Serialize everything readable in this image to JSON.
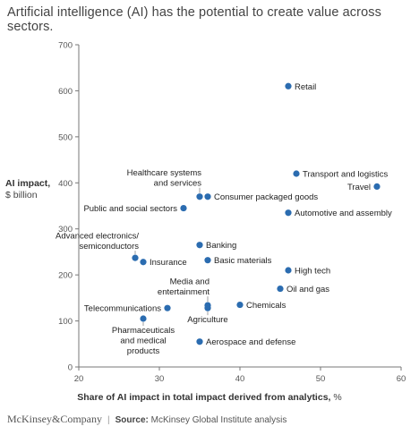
{
  "title": "Artificial intelligence (AI) has the potential to create value across sectors.",
  "ylabel_main": "AI impact,",
  "ylabel_unit": "$ billion",
  "xlabel_main": "Share of AI impact in total impact derived from analytics,",
  "xlabel_unit": "%",
  "footer": {
    "brand": "McKinsey&Company",
    "separator": "|",
    "source_label": "Source:",
    "source_text": "McKinsey Global Institute analysis"
  },
  "colors": {
    "point": "#2b6cb0",
    "axis": "#777777",
    "grid": "#e6e6e6",
    "label": "#222222"
  },
  "chart_data": {
    "type": "scatter",
    "xlim": [
      20,
      60
    ],
    "ylim": [
      0,
      700
    ],
    "xticks": [
      20,
      30,
      40,
      50,
      60
    ],
    "yticks": [
      0,
      100,
      200,
      300,
      400,
      500,
      600,
      700
    ],
    "grid": false,
    "points": [
      {
        "label": [
          "Retail"
        ],
        "x": 46,
        "y": 610,
        "pos": "right"
      },
      {
        "label": [
          "Transport and logistics"
        ],
        "x": 47,
        "y": 420,
        "pos": "right"
      },
      {
        "label": [
          "Travel"
        ],
        "x": 57,
        "y": 392,
        "pos": "left"
      },
      {
        "label": [
          "Healthcare systems",
          "and services"
        ],
        "x": 35,
        "y": 370,
        "pos": "above"
      },
      {
        "label": [
          "Consumer packaged goods"
        ],
        "x": 36,
        "y": 370,
        "pos": "right"
      },
      {
        "label": [
          "Public and social sectors"
        ],
        "x": 33,
        "y": 345,
        "pos": "left"
      },
      {
        "label": [
          "Automotive and assembly"
        ],
        "x": 46,
        "y": 335,
        "pos": "right"
      },
      {
        "label": [
          "Banking"
        ],
        "x": 35,
        "y": 265,
        "pos": "right"
      },
      {
        "label": [
          "Advanced electronics/",
          "semiconductors"
        ],
        "x": 27,
        "y": 237,
        "pos": "above-left"
      },
      {
        "label": [
          "Insurance"
        ],
        "x": 28,
        "y": 228,
        "pos": "right"
      },
      {
        "label": [
          "Basic materials"
        ],
        "x": 36,
        "y": 232,
        "pos": "right"
      },
      {
        "label": [
          "High tech"
        ],
        "x": 46,
        "y": 210,
        "pos": "right"
      },
      {
        "label": [
          "Oil and gas"
        ],
        "x": 45,
        "y": 170,
        "pos": "right"
      },
      {
        "label": [
          "Media and",
          "entertainment"
        ],
        "x": 36,
        "y": 134,
        "pos": "above"
      },
      {
        "label": [
          "Agriculture"
        ],
        "x": 36,
        "y": 128,
        "pos": "below"
      },
      {
        "label": [
          "Chemicals"
        ],
        "x": 40,
        "y": 135,
        "pos": "right"
      },
      {
        "label": [
          "Telecommunications"
        ],
        "x": 31,
        "y": 128,
        "pos": "left"
      },
      {
        "label": [
          "Pharmaceuticals",
          "and medical",
          "products"
        ],
        "x": 28,
        "y": 105,
        "pos": "below"
      },
      {
        "label": [
          "Aerospace and defense"
        ],
        "x": 35,
        "y": 55,
        "pos": "right"
      }
    ]
  }
}
